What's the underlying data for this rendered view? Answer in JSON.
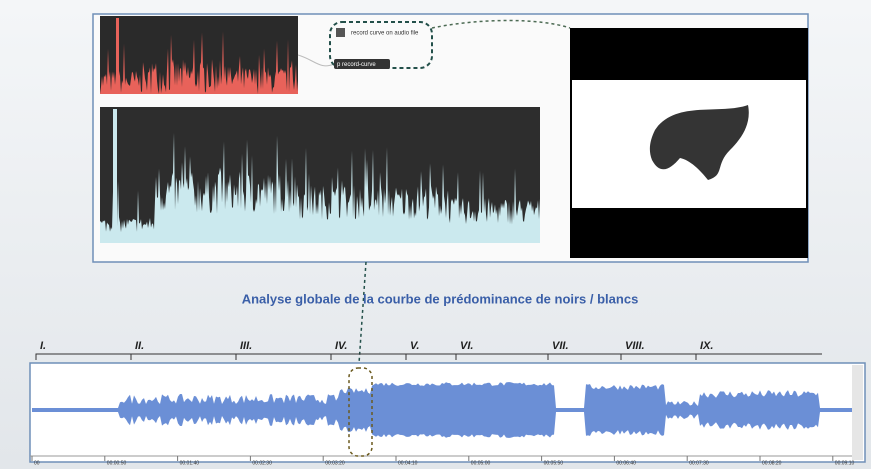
{
  "panel": {
    "checkbox_label": "record curve on audio file",
    "button_label": "p record-curve"
  },
  "caption": "Analyse globale de la  courbe de prédominance de noirs / blancs",
  "sections": [
    "I.",
    "II.",
    "III.",
    "IV.",
    "V.",
    "VI.",
    "VII.",
    "VIII.",
    "IX."
  ],
  "timeline": [
    "00",
    "00:00:50",
    "00:01:40",
    "00:02:30",
    "00:03:20",
    "00:04:10",
    "00:05:00",
    "00:05:50",
    "00:06:40",
    "00:07:30",
    "00:08:20",
    "00:09:10"
  ]
}
